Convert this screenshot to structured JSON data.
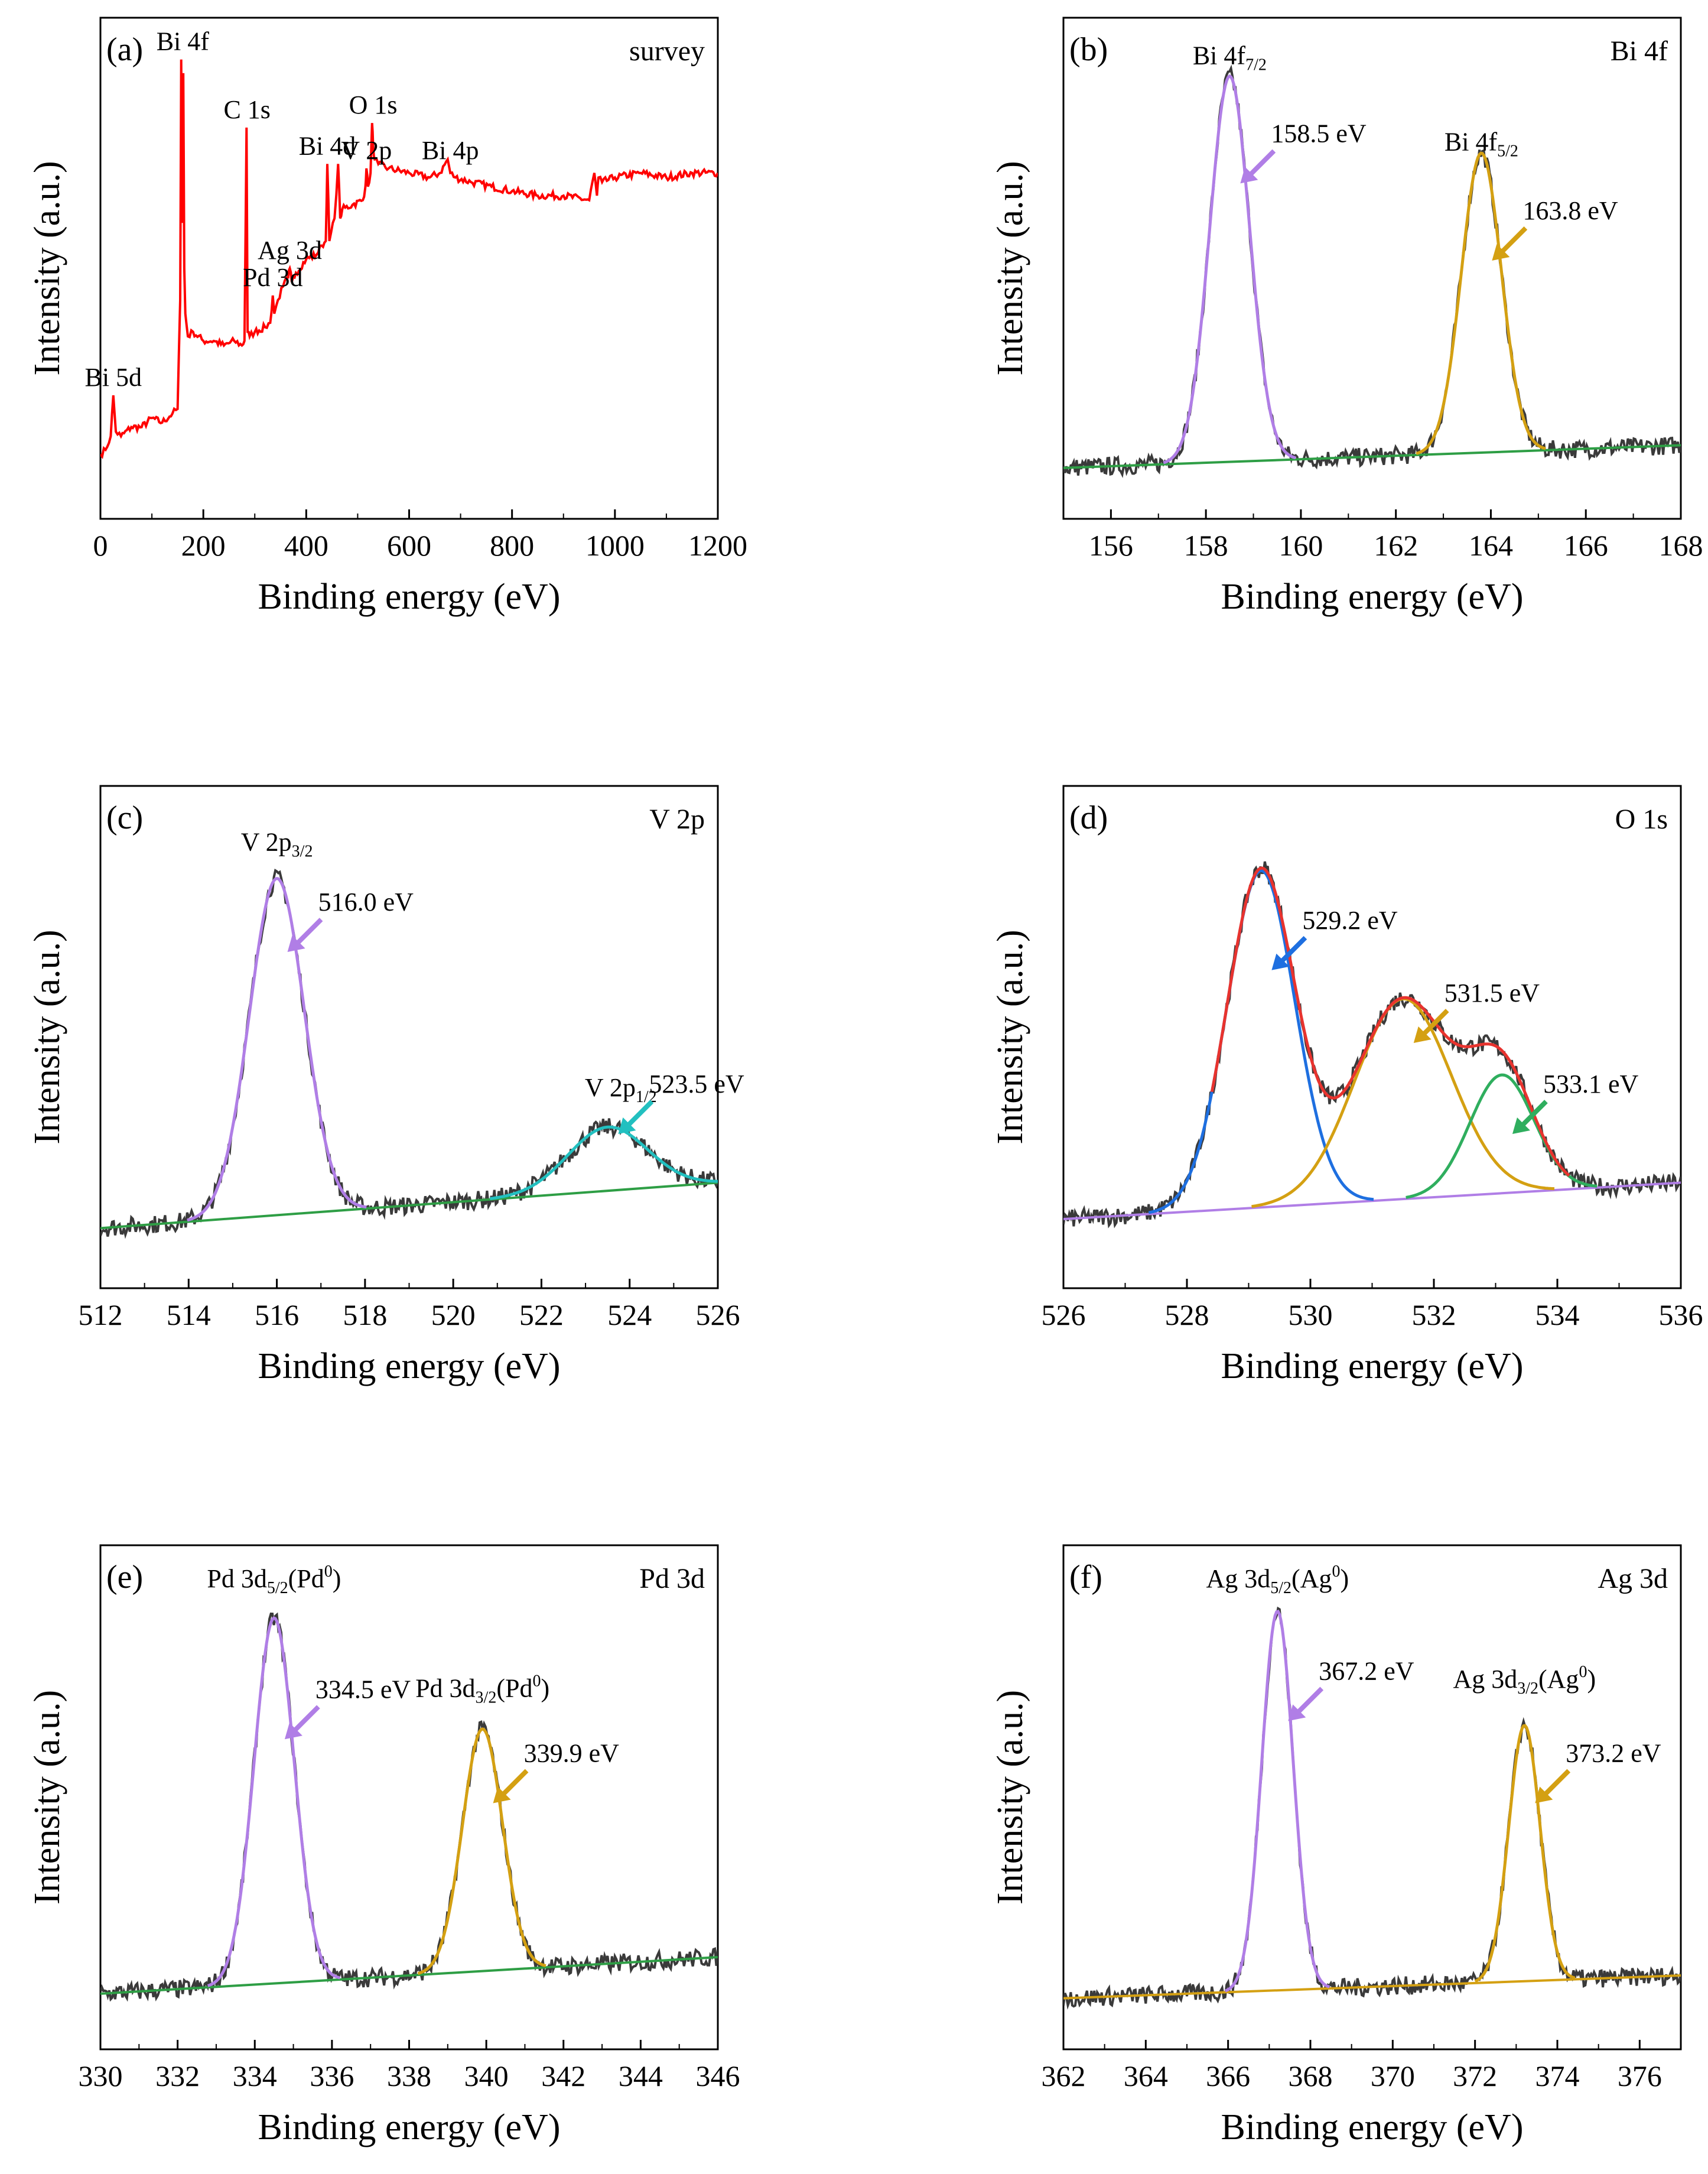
{
  "figure_label": "XPS spectra",
  "chart_data": [
    {
      "id": "a",
      "type": "line",
      "tag": "(a)",
      "corner": "survey",
      "xlabel": "Binding energy (eV)",
      "ylabel": "Intensity (a.u.)",
      "xlim": [
        0,
        1200
      ],
      "xticks": [
        0,
        200,
        400,
        600,
        800,
        1000,
        1200
      ],
      "ylim": [
        0,
        100
      ],
      "series": [
        {
          "name": "survey",
          "color": "#ff0000",
          "x": [
            0,
            10,
            20,
            25,
            30,
            40,
            60,
            80,
            100,
            120,
            140,
            150,
            155,
            157,
            159,
            161,
            163,
            165,
            170,
            180,
            200,
            220,
            240,
            260,
            275,
            280,
            284,
            286,
            290,
            300,
            320,
            330,
            335,
            338,
            345,
            355,
            365,
            368,
            372,
            380,
            400,
            420,
            430,
            438,
            441,
            445,
            455,
            462,
            466,
            470,
            490,
            510,
            515,
            517,
            520,
            525,
            528,
            530,
            533,
            540,
            560,
            600,
            640,
            660,
            675,
            680,
            690,
            720,
            760,
            800,
            850,
            900,
            950,
            960,
            965,
            968,
            975,
            1000,
            1050,
            1100,
            1150,
            1200
          ],
          "y": [
            9,
            10,
            13,
            22,
            14,
            13,
            15,
            15,
            17,
            16,
            18,
            19,
            43,
            96,
            60,
            93,
            50,
            40,
            35,
            36,
            34,
            34,
            33,
            34,
            33,
            34,
            81,
            36,
            35,
            36,
            37,
            38,
            44,
            40,
            43,
            46,
            48,
            50,
            47,
            49,
            52,
            53,
            55,
            56,
            73,
            56,
            61,
            73,
            61,
            63,
            64,
            65,
            68,
            72,
            68,
            71,
            82,
            77,
            74,
            73,
            72,
            71,
            70,
            71,
            74,
            71,
            70,
            69,
            68,
            67,
            66,
            66,
            65,
            71,
            66,
            70,
            69,
            70,
            71,
            70,
            71,
            71
          ]
        }
      ],
      "peaks": [
        {
          "text": "Bi 5d",
          "x": 25,
          "y": 22
        },
        {
          "text": "Bi 4f",
          "x": 160,
          "y": 96
        },
        {
          "text": "C 1s",
          "x": 285,
          "y": 81
        },
        {
          "text": "Pd 3d",
          "x": 335,
          "y": 44
        },
        {
          "text": "Ag 3d",
          "x": 368,
          "y": 50
        },
        {
          "text": "Bi 4d",
          "x": 441,
          "y": 73
        },
        {
          "text": "V 2p",
          "x": 517,
          "y": 72
        },
        {
          "text": "O 1s",
          "x": 530,
          "y": 82
        },
        {
          "text": "Bi 4p",
          "x": 680,
          "y": 72
        }
      ]
    },
    {
      "id": "b",
      "type": "line",
      "tag": "(b)",
      "corner": "Bi 4f",
      "xlabel": "Binding energy (eV)",
      "ylabel": "Intensity (a.u.)",
      "xlim": [
        155,
        168
      ],
      "xticks": [
        156,
        158,
        160,
        162,
        164,
        166,
        168
      ],
      "ylim": [
        0,
        100
      ],
      "baseline": {
        "x": [
          155,
          168
        ],
        "y": [
          6,
          11
        ]
      },
      "fits": [
        {
          "name": "Bi 4f7/2",
          "center": 158.5,
          "height": 85,
          "sigma": 0.42,
          "color": "#b07ee6"
        },
        {
          "name": "Bi 4f5/2",
          "center": 163.8,
          "height": 66,
          "sigma": 0.42,
          "color": "#d4a012"
        }
      ],
      "baseline_color": "#2e9e45",
      "raw_color": "#3a3a3a",
      "labels": [
        {
          "main": "Bi 4f",
          "sub": "7/2",
          "x": 158.5,
          "y": 95
        },
        {
          "main": "Bi 4f",
          "sub": "5/2",
          "x": 163.8,
          "y": 76
        }
      ],
      "annotations": [
        {
          "text": "158.5 eV",
          "x": 158.5,
          "y": 70,
          "color": "#b07ee6"
        },
        {
          "text": "163.8 eV",
          "x": 163.8,
          "y": 53,
          "color": "#d4a012"
        }
      ]
    },
    {
      "id": "c",
      "type": "line",
      "tag": "(c)",
      "corner": "V 2p",
      "xlabel": "Binding energy (eV)",
      "ylabel": "Intensity (a.u.)",
      "xlim": [
        512,
        526
      ],
      "xticks": [
        512,
        514,
        516,
        518,
        520,
        522,
        524,
        526
      ],
      "ylim": [
        0,
        100
      ],
      "baseline": {
        "x": [
          512,
          526
        ],
        "y": [
          8,
          18
        ]
      },
      "fits": [
        {
          "name": "V 2p3/2",
          "center": 516.0,
          "height": 74,
          "sigma": 0.62,
          "color": "#b07ee6"
        },
        {
          "name": "V 2p1/2",
          "center": 523.5,
          "height": 14,
          "sigma": 0.9,
          "color": "#22c0c0"
        }
      ],
      "baseline_color": "#2e9e45",
      "raw_color": "#3a3a3a",
      "labels": [
        {
          "main": "V 2p",
          "sub": "3/2",
          "x": 516.0,
          "y": 91
        },
        {
          "main": "V 2p",
          "sub": "1/2",
          "x": 523.8,
          "y": 37
        }
      ],
      "annotations": [
        {
          "text": "516.0 eV",
          "x": 516.0,
          "y": 70,
          "color": "#b07ee6"
        },
        {
          "text": "523.5 eV",
          "x": 523.5,
          "y": 30,
          "color": "#22c0c0"
        }
      ]
    },
    {
      "id": "d",
      "type": "line",
      "tag": "(d)",
      "corner": "O 1s",
      "xlabel": "Binding energy (eV)",
      "ylabel": "Intensity (a.u.)",
      "xlim": [
        526,
        536
      ],
      "xticks": [
        526,
        528,
        530,
        532,
        534,
        536
      ],
      "ylim": [
        0,
        100
      ],
      "baseline": {
        "x": [
          526,
          536
        ],
        "y": [
          10,
          18
        ]
      },
      "fits": [
        {
          "name": "529.2",
          "center": 529.2,
          "height": 74,
          "sigma": 0.55,
          "color": "#1e6fe0"
        },
        {
          "name": "531.5",
          "center": 531.5,
          "height": 44,
          "sigma": 0.78,
          "color": "#d4a012"
        },
        {
          "name": "533.1",
          "center": 533.1,
          "height": 26,
          "sigma": 0.52,
          "color": "#2fae5e"
        }
      ],
      "envelope_color": "#e8332e",
      "baseline_color": "#b07ee6",
      "raw_color": "#3a3a3a",
      "labels": [],
      "annotations": [
        {
          "text": "529.2 eV",
          "x": 529.2,
          "y": 66,
          "color": "#1e6fe0"
        },
        {
          "text": "531.5 eV",
          "x": 531.5,
          "y": 50,
          "color": "#d4a012"
        },
        {
          "text": "533.1 eV",
          "x": 533.1,
          "y": 30,
          "color": "#2fae5e"
        }
      ]
    },
    {
      "id": "e",
      "type": "line",
      "tag": "(e)",
      "corner": "Pd 3d",
      "xlabel": "Binding energy (eV)",
      "ylabel": "Intensity (a.u.)",
      "xlim": [
        330,
        346
      ],
      "xticks": [
        330,
        332,
        334,
        336,
        338,
        340,
        342,
        344,
        346
      ],
      "ylim": [
        0,
        100
      ],
      "baseline": {
        "x": [
          330,
          346
        ],
        "y": [
          7,
          15
        ]
      },
      "fits": [
        {
          "name": "Pd 3d5/2",
          "center": 334.5,
          "height": 80,
          "sigma": 0.52,
          "color": "#b07ee6"
        },
        {
          "name": "Pd 3d3/2",
          "center": 339.9,
          "height": 53,
          "sigma": 0.52,
          "color": "#d4a012"
        }
      ],
      "baseline_color": "#2e9e45",
      "raw_color": "#3a3a3a",
      "labels": [
        {
          "main": "Pd 3d",
          "sub": "5/2",
          "suffix": "(Pd",
          "sup": "0",
          "tail": ")",
          "x": 334.5,
          "y": 96
        },
        {
          "main": "Pd 3d",
          "sub": "3/2",
          "suffix": "(Pd",
          "sup": "0",
          "tail": ")",
          "x": 339.9,
          "y": 72
        }
      ],
      "annotations": [
        {
          "text": "334.5 eV",
          "x": 334.5,
          "y": 64,
          "color": "#b07ee6"
        },
        {
          "text": "339.9 eV",
          "x": 339.9,
          "y": 50,
          "color": "#d4a012"
        }
      ]
    },
    {
      "id": "f",
      "type": "line",
      "tag": "(f)",
      "corner": "Ag 3d",
      "xlabel": "Binding energy (eV)",
      "ylabel": "Intensity (a.u.)",
      "xlim": [
        362,
        377
      ],
      "xticks": [
        362,
        364,
        366,
        368,
        370,
        372,
        374,
        376
      ],
      "ylim": [
        0,
        100
      ],
      "baseline": {
        "x": [
          362,
          377
        ],
        "y": [
          6,
          11
        ]
      },
      "fits": [
        {
          "name": "Ag 3d5/2",
          "center": 367.2,
          "height": 83,
          "sigma": 0.38,
          "color": "#b07ee6"
        },
        {
          "name": "Ag 3d3/2",
          "center": 373.2,
          "height": 56,
          "sigma": 0.38,
          "color": "#d4a012"
        }
      ],
      "baseline_color": "#d4a012",
      "raw_color": "#3a3a3a",
      "labels": [
        {
          "main": "Ag 3d",
          "sub": "5/2",
          "suffix": "(Ag",
          "sup": "0",
          "tail": ")",
          "x": 367.2,
          "y": 96
        },
        {
          "main": "Ag 3d",
          "sub": "3/2",
          "suffix": "(Ag",
          "sup": "0",
          "tail": ")",
          "x": 373.2,
          "y": 74
        }
      ],
      "annotations": [
        {
          "text": "367.2 eV",
          "x": 367.2,
          "y": 68,
          "color": "#b07ee6"
        },
        {
          "text": "373.2 eV",
          "x": 373.2,
          "y": 50,
          "color": "#d4a012"
        }
      ]
    }
  ]
}
